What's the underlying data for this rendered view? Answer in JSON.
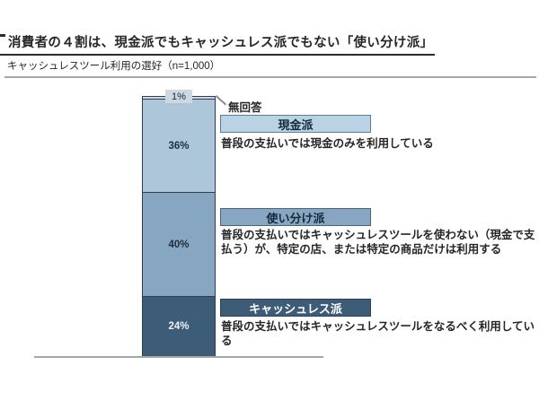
{
  "page": {
    "title": "消費者の４割は、現金派でもキャッシュレス派でもない「使い分け派」",
    "subtitle": "キャッシュレスツール利用の選好（n=1,000）"
  },
  "chart_data": {
    "type": "bar",
    "stacked": true,
    "orientation": "vertical",
    "title": "キャッシュレスツール利用の選好（n=1,000）",
    "sample_size": "n=1,000",
    "unit": "%",
    "categories": [
      "無回答",
      "現金派",
      "使い分け派",
      "キャッシュレス派"
    ],
    "values": [
      1,
      36,
      40,
      24
    ],
    "colors": {
      "no_answer": "#ccd8e2",
      "cash": "#adc6da",
      "split": "#87a6c1",
      "cashless": "#3d5c78",
      "bar_border": "#2e3e50",
      "axis_line": "#a6a6a6"
    },
    "segments": {
      "no_answer": {
        "label": "無回答",
        "value": 1,
        "value_label": "1%",
        "description": ""
      },
      "cash": {
        "label": "現金派",
        "value": 36,
        "value_label": "36%",
        "description": "普段の支払いでは現金のみを利用している"
      },
      "split": {
        "label": "使い分け派",
        "value": 40,
        "value_label": "40%",
        "description": "普段の支払いではキャッシュレスツールを使わない（現金で支払う）が、特定の店、または特定の商品だけは利用する"
      },
      "cashless": {
        "label": "キャッシュレス派",
        "value": 24,
        "value_label": "24%",
        "description": "普段の支払いではキャッシュレスツールをなるべく利用している"
      }
    }
  }
}
